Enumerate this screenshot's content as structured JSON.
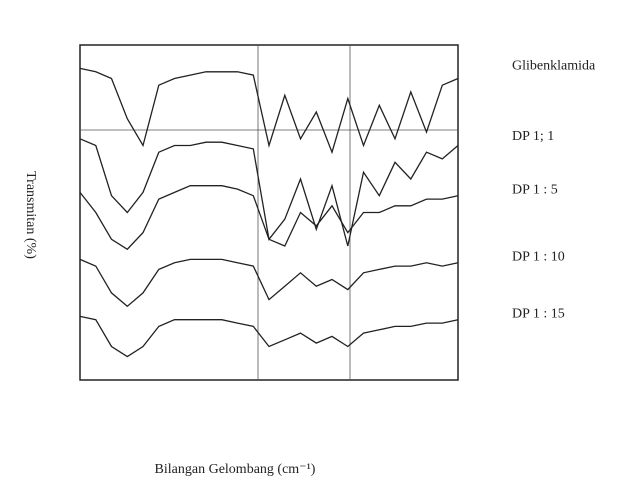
{
  "chart_data": {
    "type": "line",
    "y_label": "Transmitan (%)",
    "x_label": "Bilangan Gelombang (cm⁻¹)",
    "x": [
      4000,
      3850,
      3700,
      3550,
      3400,
      3250,
      3100,
      2950,
      2800,
      2650,
      2500,
      2350,
      2200,
      2050,
      1900,
      1750,
      1600,
      1450,
      1300,
      1150,
      1000,
      850,
      700,
      550,
      400
    ],
    "xlim": [
      4000,
      400
    ],
    "ylim": [
      0,
      100
    ],
    "color": "#222222",
    "series": [
      {
        "name": "Glibenklamida",
        "values": [
          93,
          92,
          90,
          78,
          70,
          88,
          90,
          91,
          92,
          92,
          92,
          91,
          70,
          85,
          72,
          80,
          68,
          84,
          70,
          82,
          72,
          86,
          74,
          88,
          90
        ]
      },
      {
        "name": "DP 1; 1",
        "values": [
          72,
          70,
          55,
          50,
          56,
          68,
          70,
          70,
          71,
          71,
          70,
          69,
          42,
          48,
          60,
          45,
          58,
          40,
          62,
          55,
          65,
          60,
          68,
          66,
          70
        ]
      },
      {
        "name": "DP 1 : 5",
        "values": [
          56,
          50,
          42,
          39,
          44,
          54,
          56,
          58,
          58,
          58,
          57,
          55,
          42,
          40,
          50,
          46,
          52,
          44,
          50,
          50,
          52,
          52,
          54,
          54,
          55
        ]
      },
      {
        "name": "DP 1 : 10",
        "values": [
          36,
          34,
          26,
          22,
          26,
          33,
          35,
          36,
          36,
          36,
          35,
          34,
          24,
          28,
          32,
          28,
          30,
          27,
          32,
          33,
          34,
          34,
          35,
          34,
          35
        ]
      },
      {
        "name": "DP 1 : 15",
        "values": [
          19,
          18,
          10,
          7,
          10,
          16,
          18,
          18,
          18,
          18,
          17,
          16,
          10,
          12,
          14,
          11,
          13,
          10,
          14,
          15,
          16,
          16,
          17,
          17,
          18
        ]
      }
    ]
  }
}
